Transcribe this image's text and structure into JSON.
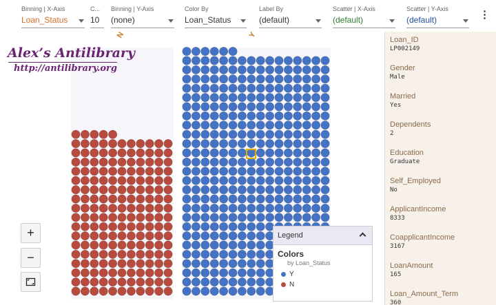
{
  "toolbar": {
    "binning_x": {
      "label": "Binning | X-Axis",
      "value": "Loan_Status"
    },
    "count": {
      "label": "C...",
      "value": "10"
    },
    "binning_y": {
      "label": "Binning | Y-Axis",
      "value": "(none)"
    },
    "color_by": {
      "label": "Color By",
      "value": "Loan_Status"
    },
    "label_by": {
      "label": "Label By",
      "value": "(default)"
    },
    "scatter_x": {
      "label": "Scatter | X-Axis",
      "value": "(default)"
    },
    "scatter_y": {
      "label": "Scatter | Y-Axis",
      "value": "(default)"
    },
    "menu_icon": "vertical-ellipsis-icon"
  },
  "colors": {
    "accent_orange": "#d4702a",
    "scatter_x_green": "#2e7d32",
    "scatter_y_blue": "#1f4e9c",
    "dot_red": "#b84a3e",
    "dot_blue": "#4472c4",
    "selected": "#e0b000"
  },
  "watermark": {
    "title": "Alex’s Antilibrary",
    "url": "http://antilibrary.org"
  },
  "chart_data": {
    "type": "unit",
    "categories": [
      "N",
      "Y"
    ],
    "values": [
      192,
      422
    ],
    "series": [
      {
        "name": "N",
        "color": "#b84a3e"
      },
      {
        "name": "Y",
        "color": "#4472c4"
      }
    ]
  },
  "zoom": {
    "in_icon": "plus-icon",
    "out_icon": "minus-icon",
    "fit_icon": "fit-to-screen-icon",
    "in_label": "+",
    "out_label": "−"
  },
  "legend": {
    "title": "Legend",
    "heading": "Colors",
    "subtitle": "by Loan_Status",
    "items": [
      {
        "label": "Y",
        "color": "#4472c4"
      },
      {
        "label": "N",
        "color": "#b84a3e"
      }
    ],
    "toggle_icon": "chevron-up-icon"
  },
  "details": [
    {
      "name": "Loan_ID",
      "value": "LP002149"
    },
    {
      "name": "Gender",
      "value": "Male"
    },
    {
      "name": "Married",
      "value": "Yes"
    },
    {
      "name": "Dependents",
      "value": "2"
    },
    {
      "name": "Education",
      "value": "Graduate"
    },
    {
      "name": "Self_Employed",
      "value": "No"
    },
    {
      "name": "ApplicantIncome",
      "value": "8333"
    },
    {
      "name": "CoapplicantIncome",
      "value": "3167"
    },
    {
      "name": "LoanAmount",
      "value": "165"
    },
    {
      "name": "Loan_Amount_Term",
      "value": "360"
    }
  ]
}
